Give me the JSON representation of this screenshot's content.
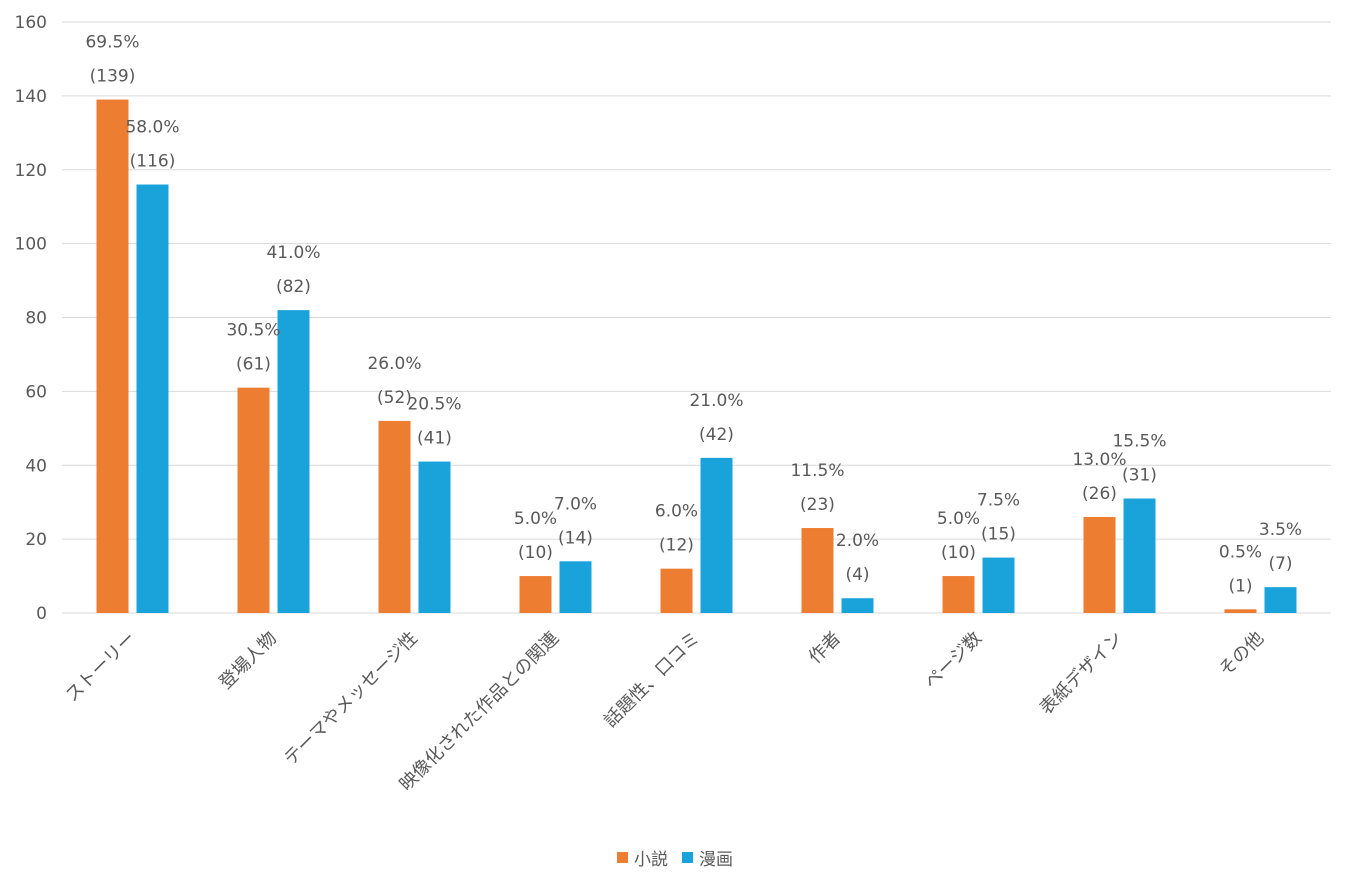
{
  "chart_data": {
    "type": "bar",
    "title": "",
    "xlabel": "",
    "ylabel": "",
    "ylim": [
      0,
      160
    ],
    "y_ticks": [
      "0",
      "20",
      "40",
      "60",
      "80",
      "100",
      "120",
      "140",
      "160"
    ],
    "grid": true,
    "legend_position": "bottom",
    "categories": [
      "ストーリー",
      "登場人物",
      "テーマやメッセージ性",
      "映像化された作品との関連",
      "話題性、口コミ",
      "作者",
      "ページ数",
      "表紙デザイン",
      "その他"
    ],
    "series": [
      {
        "name": "小説",
        "color": "#ED7D31",
        "values": [
          139,
          61,
          52,
          10,
          12,
          23,
          10,
          26,
          1
        ],
        "percent_labels": [
          "69.5%",
          "30.5%",
          "26.0%",
          "5.0%",
          "6.0%",
          "11.5%",
          "5.0%",
          "13.0%",
          "0.5%"
        ],
        "count_labels": [
          "(139)",
          "(61)",
          "(52)",
          "(10)",
          "(12)",
          "(23)",
          "(10)",
          "(26)",
          "(1)"
        ]
      },
      {
        "name": "漫画",
        "color": "#1AA3DB",
        "values": [
          116,
          82,
          41,
          14,
          42,
          4,
          15,
          31,
          7
        ],
        "percent_labels": [
          "58.0%",
          "41.0%",
          "20.5%",
          "7.0%",
          "21.0%",
          "2.0%",
          "7.5%",
          "15.5%",
          "3.5%"
        ],
        "count_labels": [
          "(116)",
          "(82)",
          "(41)",
          "(14)",
          "(42)",
          "(4)",
          "(15)",
          "(31)",
          "(7)"
        ]
      }
    ]
  }
}
